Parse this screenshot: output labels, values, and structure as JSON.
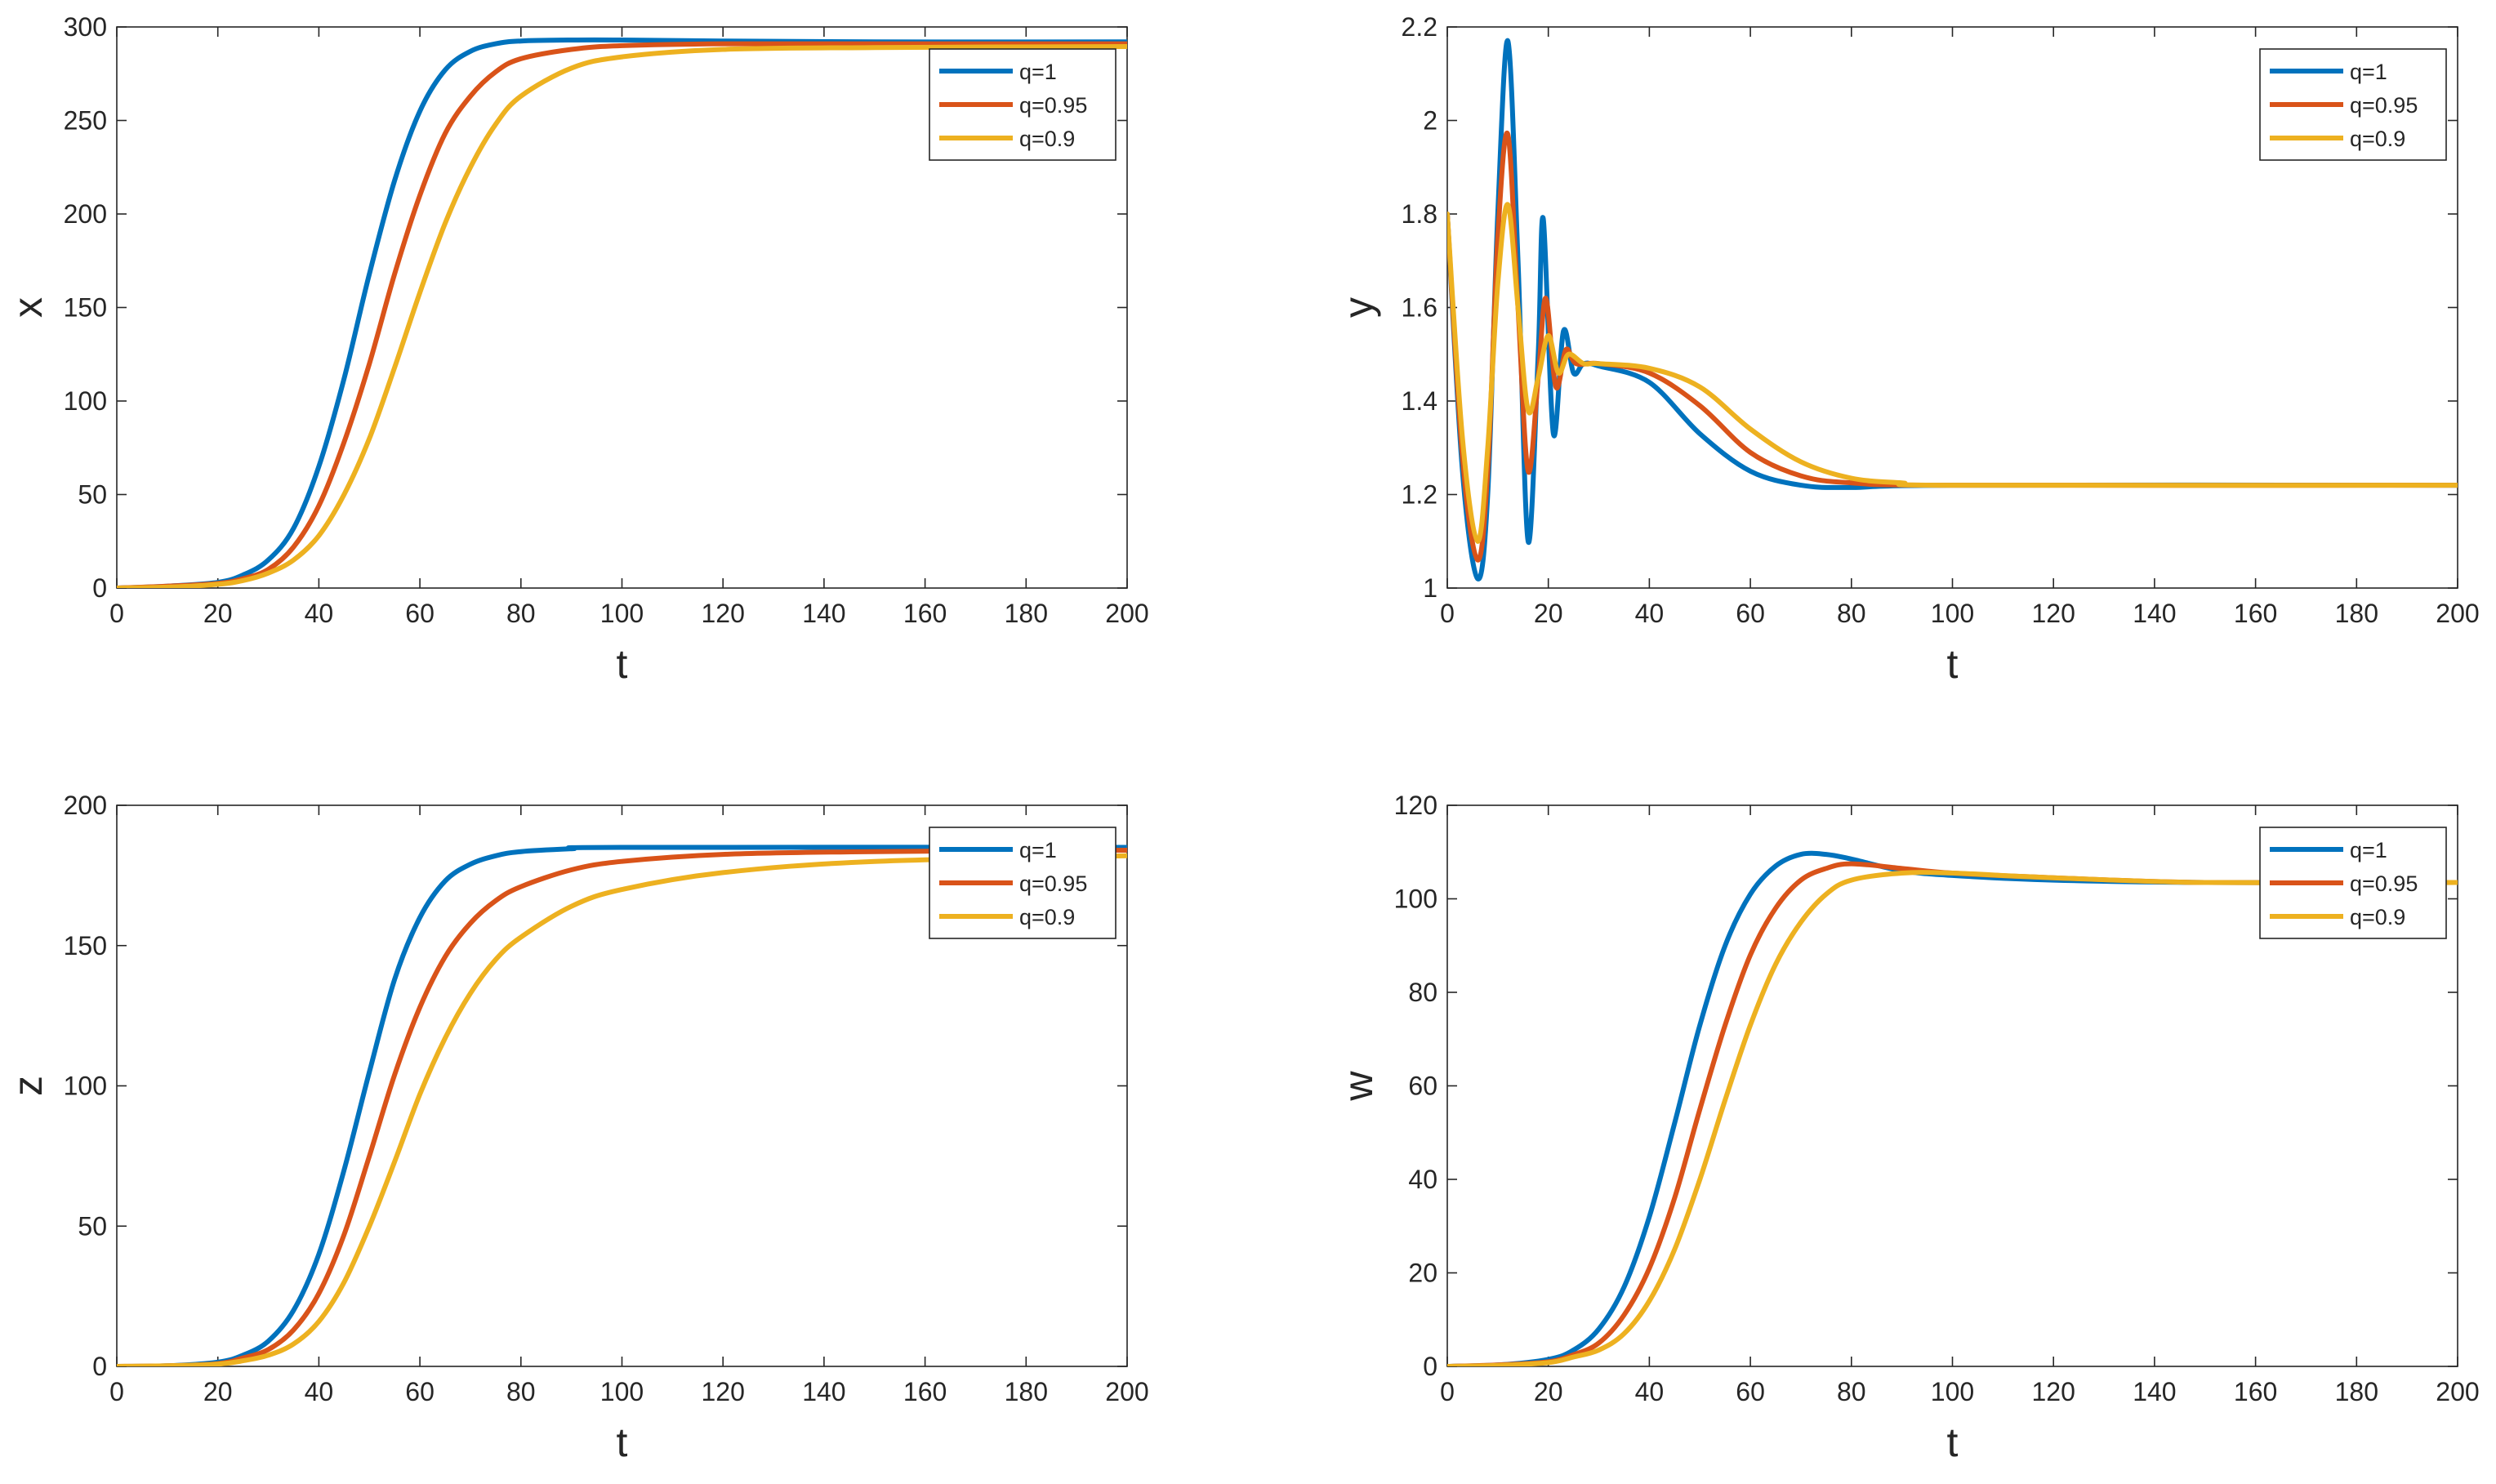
{
  "figure": {
    "title": ""
  },
  "chart_data": [
    {
      "type": "line",
      "title": "",
      "xlabel": "t",
      "ylabel": "x",
      "xlim": [
        0,
        200
      ],
      "ylim": [
        0,
        300
      ],
      "xticks": [
        0,
        20,
        40,
        60,
        80,
        100,
        120,
        140,
        160,
        180,
        200
      ],
      "yticks": [
        0,
        50,
        100,
        150,
        200,
        250,
        300
      ],
      "grid": false,
      "legend_position": "top-right",
      "series": [
        {
          "name": "q=1",
          "color": "#0072BD",
          "points": [
            [
              0,
              0
            ],
            [
              10,
              1
            ],
            [
              20,
              3
            ],
            [
              25,
              7
            ],
            [
              30,
              15
            ],
            [
              35,
              32
            ],
            [
              40,
              65
            ],
            [
              45,
              112
            ],
            [
              50,
              168
            ],
            [
              55,
              218
            ],
            [
              60,
              255
            ],
            [
              65,
              277
            ],
            [
              70,
              287
            ],
            [
              75,
              291
            ],
            [
              80,
              292.5
            ],
            [
              90,
              293
            ],
            [
              100,
              293
            ],
            [
              120,
              292.5
            ],
            [
              150,
              292
            ],
            [
              200,
              292
            ]
          ]
        },
        {
          "name": "q=0.95",
          "color": "#D95319",
          "points": [
            [
              0,
              0
            ],
            [
              10,
              1
            ],
            [
              20,
              2.5
            ],
            [
              25,
              5
            ],
            [
              30,
              10
            ],
            [
              35,
              22
            ],
            [
              40,
              44
            ],
            [
              45,
              78
            ],
            [
              50,
              120
            ],
            [
              55,
              168
            ],
            [
              60,
              210
            ],
            [
              65,
              243
            ],
            [
              70,
              263
            ],
            [
              75,
              276
            ],
            [
              80,
              283
            ],
            [
              90,
              288
            ],
            [
              100,
              290
            ],
            [
              120,
              291
            ],
            [
              150,
              291
            ],
            [
              200,
              291
            ]
          ]
        },
        {
          "name": "q=0.9",
          "color": "#EDB120",
          "points": [
            [
              0,
              0
            ],
            [
              10,
              0.5
            ],
            [
              20,
              2
            ],
            [
              25,
              4
            ],
            [
              30,
              8
            ],
            [
              35,
              15
            ],
            [
              40,
              28
            ],
            [
              45,
              50
            ],
            [
              50,
              80
            ],
            [
              55,
              118
            ],
            [
              60,
              158
            ],
            [
              65,
              195
            ],
            [
              70,
              225
            ],
            [
              75,
              248
            ],
            [
              80,
              263
            ],
            [
              90,
              278
            ],
            [
              100,
              284
            ],
            [
              120,
              288
            ],
            [
              150,
              289
            ],
            [
              200,
              289.5
            ]
          ]
        }
      ]
    },
    {
      "type": "line",
      "title": "",
      "xlabel": "t",
      "ylabel": "y",
      "xlim": [
        0,
        200
      ],
      "ylim": [
        1,
        2.2
      ],
      "xticks": [
        0,
        20,
        40,
        60,
        80,
        100,
        120,
        140,
        160,
        180,
        200
      ],
      "yticks": [
        1,
        1.2,
        1.4,
        1.6,
        1.8,
        2,
        2.2
      ],
      "grid": false,
      "legend_position": "top-right",
      "series": [
        {
          "name": "q=1",
          "color": "#0072BD",
          "points": [
            [
              0,
              1.8
            ],
            [
              3,
              1.25
            ],
            [
              6,
              1.02
            ],
            [
              8,
              1.2
            ],
            [
              10,
              1.8
            ],
            [
              12,
              2.17
            ],
            [
              14,
              1.7
            ],
            [
              16,
              1.1
            ],
            [
              18,
              1.5
            ],
            [
              19,
              1.79
            ],
            [
              21,
              1.33
            ],
            [
              23,
              1.55
            ],
            [
              25,
              1.46
            ],
            [
              27,
              1.48
            ],
            [
              30,
              1.475
            ],
            [
              40,
              1.44
            ],
            [
              50,
              1.33
            ],
            [
              60,
              1.25
            ],
            [
              70,
              1.22
            ],
            [
              80,
              1.215
            ],
            [
              100,
              1.22
            ],
            [
              200,
              1.22
            ]
          ]
        },
        {
          "name": "q=0.95",
          "color": "#D95319",
          "points": [
            [
              0,
              1.8
            ],
            [
              3,
              1.28
            ],
            [
              6,
              1.06
            ],
            [
              8,
              1.25
            ],
            [
              10,
              1.75
            ],
            [
              12,
              1.97
            ],
            [
              14,
              1.6
            ],
            [
              16,
              1.25
            ],
            [
              18,
              1.45
            ],
            [
              19.5,
              1.62
            ],
            [
              21.5,
              1.43
            ],
            [
              23.5,
              1.51
            ],
            [
              25.5,
              1.48
            ],
            [
              30,
              1.48
            ],
            [
              40,
              1.46
            ],
            [
              50,
              1.39
            ],
            [
              60,
              1.29
            ],
            [
              70,
              1.24
            ],
            [
              80,
              1.225
            ],
            [
              100,
              1.22
            ],
            [
              200,
              1.22
            ]
          ]
        },
        {
          "name": "q=0.9",
          "color": "#EDB120",
          "points": [
            [
              0,
              1.8
            ],
            [
              3,
              1.32
            ],
            [
              6,
              1.1
            ],
            [
              8,
              1.3
            ],
            [
              10,
              1.65
            ],
            [
              12,
              1.82
            ],
            [
              14,
              1.6
            ],
            [
              16,
              1.38
            ],
            [
              18,
              1.45
            ],
            [
              20,
              1.54
            ],
            [
              22,
              1.46
            ],
            [
              24,
              1.5
            ],
            [
              27,
              1.48
            ],
            [
              30,
              1.48
            ],
            [
              40,
              1.47
            ],
            [
              50,
              1.43
            ],
            [
              60,
              1.34
            ],
            [
              70,
              1.27
            ],
            [
              80,
              1.235
            ],
            [
              90,
              1.225
            ],
            [
              100,
              1.22
            ],
            [
              200,
              1.22
            ]
          ]
        }
      ]
    },
    {
      "type": "line",
      "title": "",
      "xlabel": "t",
      "ylabel": "z",
      "xlim": [
        0,
        200
      ],
      "ylim": [
        0,
        200
      ],
      "xticks": [
        0,
        20,
        40,
        60,
        80,
        100,
        120,
        140,
        160,
        180,
        200
      ],
      "yticks": [
        0,
        50,
        100,
        150,
        200
      ],
      "grid": false,
      "legend_position": "top-right",
      "series": [
        {
          "name": "q=1",
          "color": "#0072BD",
          "points": [
            [
              0,
              0
            ],
            [
              10,
              0.2
            ],
            [
              20,
              1.5
            ],
            [
              25,
              4
            ],
            [
              30,
              9
            ],
            [
              35,
              20
            ],
            [
              40,
              40
            ],
            [
              45,
              70
            ],
            [
              50,
              105
            ],
            [
              55,
              138
            ],
            [
              60,
              160
            ],
            [
              65,
              173
            ],
            [
              70,
              179
            ],
            [
              75,
              182
            ],
            [
              80,
              183.5
            ],
            [
              90,
              184.5
            ],
            [
              100,
              185
            ],
            [
              200,
              185
            ]
          ]
        },
        {
          "name": "q=0.95",
          "color": "#D95319",
          "points": [
            [
              0,
              0
            ],
            [
              10,
              0.2
            ],
            [
              20,
              1
            ],
            [
              25,
              3
            ],
            [
              30,
              6
            ],
            [
              35,
              13
            ],
            [
              40,
              26
            ],
            [
              45,
              47
            ],
            [
              50,
              75
            ],
            [
              55,
              104
            ],
            [
              60,
              128
            ],
            [
              65,
              146
            ],
            [
              70,
              158
            ],
            [
              75,
              166
            ],
            [
              80,
              171
            ],
            [
              90,
              177
            ],
            [
              100,
              180
            ],
            [
              120,
              182.5
            ],
            [
              150,
              183.5
            ],
            [
              200,
              184
            ]
          ]
        },
        {
          "name": "q=0.9",
          "color": "#EDB120",
          "points": [
            [
              0,
              0
            ],
            [
              10,
              0.2
            ],
            [
              20,
              0.8
            ],
            [
              25,
              2
            ],
            [
              30,
              4
            ],
            [
              35,
              8
            ],
            [
              40,
              16
            ],
            [
              45,
              30
            ],
            [
              50,
              50
            ],
            [
              55,
              73
            ],
            [
              60,
              97
            ],
            [
              65,
              117
            ],
            [
              70,
              133
            ],
            [
              75,
              145
            ],
            [
              80,
              153
            ],
            [
              90,
              164
            ],
            [
              100,
              170
            ],
            [
              120,
              176
            ],
            [
              150,
              180
            ],
            [
              200,
              182
            ]
          ]
        }
      ]
    },
    {
      "type": "line",
      "title": "",
      "xlabel": "t",
      "ylabel": "w",
      "xlim": [
        0,
        200
      ],
      "ylim": [
        0,
        120
      ],
      "xticks": [
        0,
        20,
        40,
        60,
        80,
        100,
        120,
        140,
        160,
        180,
        200
      ],
      "yticks": [
        0,
        20,
        40,
        60,
        80,
        100,
        120
      ],
      "grid": false,
      "legend_position": "top-right",
      "series": [
        {
          "name": "q=1",
          "color": "#0072BD",
          "points": [
            [
              0,
              0
            ],
            [
              10,
              0.3
            ],
            [
              20,
              1.5
            ],
            [
              25,
              3.5
            ],
            [
              30,
              8
            ],
            [
              35,
              17
            ],
            [
              40,
              32
            ],
            [
              45,
              52
            ],
            [
              50,
              73
            ],
            [
              55,
              90
            ],
            [
              60,
              101
            ],
            [
              65,
              107
            ],
            [
              70,
              109.5
            ],
            [
              75,
              109.5
            ],
            [
              80,
              108.5
            ],
            [
              90,
              106
            ],
            [
              100,
              105
            ],
            [
              120,
              104
            ],
            [
              150,
              103.5
            ],
            [
              200,
              103.5
            ]
          ]
        },
        {
          "name": "q=0.95",
          "color": "#D95319",
          "points": [
            [
              0,
              0
            ],
            [
              10,
              0.3
            ],
            [
              20,
              1
            ],
            [
              25,
              2.5
            ],
            [
              30,
              5
            ],
            [
              35,
              11
            ],
            [
              40,
              21
            ],
            [
              45,
              36
            ],
            [
              50,
              55
            ],
            [
              55,
              73
            ],
            [
              60,
              88
            ],
            [
              65,
              98
            ],
            [
              70,
              104
            ],
            [
              75,
              106.5
            ],
            [
              80,
              107.5
            ],
            [
              90,
              106.5
            ],
            [
              100,
              105.5
            ],
            [
              120,
              104.5
            ],
            [
              150,
              103.5
            ],
            [
              200,
              103.5
            ]
          ]
        },
        {
          "name": "q=0.9",
          "color": "#EDB120",
          "points": [
            [
              0,
              0
            ],
            [
              10,
              0.2
            ],
            [
              20,
              0.8
            ],
            [
              25,
              2
            ],
            [
              30,
              3.5
            ],
            [
              35,
              7
            ],
            [
              40,
              14
            ],
            [
              45,
              25
            ],
            [
              50,
              40
            ],
            [
              55,
              57
            ],
            [
              60,
              73
            ],
            [
              65,
              86
            ],
            [
              70,
              95
            ],
            [
              75,
              101
            ],
            [
              80,
              104
            ],
            [
              90,
              105.5
            ],
            [
              100,
              105.5
            ],
            [
              120,
              104.5
            ],
            [
              150,
              103.5
            ],
            [
              200,
              103.5
            ]
          ]
        }
      ]
    }
  ]
}
